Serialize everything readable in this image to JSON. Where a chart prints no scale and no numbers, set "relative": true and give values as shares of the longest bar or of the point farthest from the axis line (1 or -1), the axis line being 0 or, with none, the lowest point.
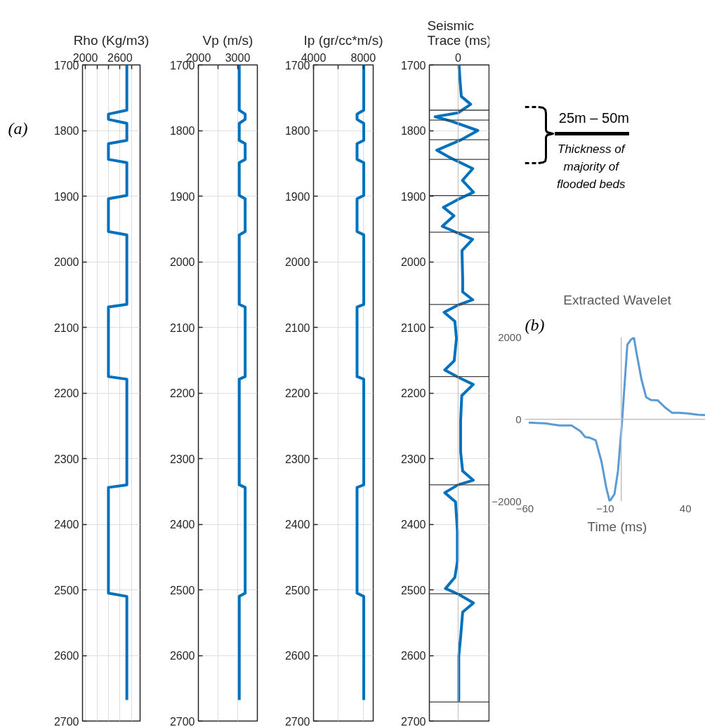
{
  "chart_data": [
    {
      "type": "line",
      "title": "Rho (Kg/m3)",
      "orientation": "horizontal",
      "xlim": [
        1950,
        2950
      ],
      "xticks": [
        2000,
        {
          "value": 2200,
          "label": null
        },
        {
          "value": 2400,
          "label": null
        },
        2600,
        {
          "value": 2800,
          "label": null
        }
      ],
      "ylim": [
        2700,
        1700
      ],
      "yticks": [
        1700,
        1800,
        1900,
        2000,
        2100,
        2200,
        2300,
        2400,
        2500,
        2600,
        2700
      ],
      "grid": true,
      "annotations": [
        "(a)"
      ],
      "series": [
        {
          "color": "#0072bd",
          "x": [
            1700,
            1769,
            1775,
            1783,
            1789,
            1815,
            1820,
            1844,
            1849,
            1899,
            1904,
            1954,
            1959,
            2065,
            2069,
            2175,
            2179,
            2340,
            2344,
            2505,
            2510,
            2668
          ],
          "values": [
            2720,
            2720,
            2400,
            2400,
            2720,
            2720,
            2400,
            2400,
            2720,
            2720,
            2400,
            2400,
            2720,
            2720,
            2400,
            2400,
            2720,
            2720,
            2400,
            2400,
            2720,
            2720
          ]
        }
      ]
    },
    {
      "type": "line",
      "title": "Vp (m/s)",
      "orientation": "horizontal",
      "xlim": [
        2000,
        3500
      ],
      "xticks": [
        2000,
        {
          "value": 2500,
          "label": null
        },
        3000
      ],
      "ylim": [
        2700,
        1700
      ],
      "yticks": [
        1700,
        1800,
        1900,
        2000,
        2100,
        2200,
        2300,
        2400,
        2500,
        2600,
        2700
      ],
      "grid": true,
      "series": [
        {
          "color": "#0072bd",
          "x": [
            1700,
            1769,
            1775,
            1783,
            1789,
            1815,
            1820,
            1844,
            1849,
            1899,
            1904,
            1954,
            1959,
            2065,
            2069,
            2175,
            2179,
            2340,
            2344,
            2505,
            2510,
            2668
          ],
          "values": [
            3040,
            3040,
            3190,
            3190,
            3040,
            3040,
            3190,
            3190,
            3040,
            3040,
            3190,
            3190,
            3040,
            3040,
            3190,
            3190,
            3040,
            3040,
            3190,
            3190,
            3040,
            3040
          ]
        }
      ]
    },
    {
      "type": "line",
      "title": "Ip (gr/cc*m/s)",
      "orientation": "horizontal",
      "xlim": [
        4000,
        8800
      ],
      "xticks": [
        4000,
        {
          "value": 6000,
          "label": null
        },
        8000
      ],
      "ylim": [
        2700,
        1700
      ],
      "yticks": [
        1700,
        1800,
        1900,
        2000,
        2100,
        2200,
        2300,
        2400,
        2500,
        2600,
        2700
      ],
      "grid": true,
      "series": [
        {
          "color": "#0072bd",
          "x": [
            1700,
            1769,
            1775,
            1783,
            1789,
            1815,
            1820,
            1844,
            1849,
            1899,
            1904,
            1954,
            1959,
            2065,
            2069,
            2175,
            2179,
            2340,
            2344,
            2505,
            2510,
            2668
          ],
          "values": [
            8040,
            8040,
            7500,
            7500,
            8040,
            8040,
            7500,
            7500,
            8040,
            8040,
            7500,
            7500,
            8040,
            8040,
            7500,
            7500,
            8040,
            8040,
            7500,
            7500,
            8040,
            8040
          ]
        }
      ]
    },
    {
      "type": "line",
      "title": "Seismic Trace (ms)",
      "orientation": "horizontal",
      "relative": true,
      "ylim": [
        2700,
        1700
      ],
      "yticks": [
        1700,
        1800,
        1900,
        2000,
        2100,
        2200,
        2300,
        2400,
        2500,
        2600,
        2700
      ],
      "grid": "y",
      "annotations": [
        "0",
        "25m – 50m",
        "Thickness of majority of flooded beds"
      ],
      "ref_lines": [
        {
          "axis": "y",
          "value": 1769,
          "color": "#404040"
        },
        {
          "axis": "y",
          "value": 1784,
          "color": "#404040"
        },
        {
          "axis": "y",
          "value": 1814,
          "color": "#404040"
        },
        {
          "axis": "y",
          "value": 1844,
          "color": "#404040"
        },
        {
          "axis": "y",
          "value": 1899,
          "color": "#404040"
        },
        {
          "axis": "y",
          "value": 1955,
          "color": "#404040"
        },
        {
          "axis": "y",
          "value": 2065,
          "color": "#404040"
        },
        {
          "axis": "y",
          "value": 2175,
          "color": "#404040"
        },
        {
          "axis": "y",
          "value": 2340,
          "color": "#404040"
        },
        {
          "axis": "y",
          "value": 2506,
          "color": "#404040"
        },
        {
          "axis": "y",
          "value": 2671,
          "color": "#404040"
        }
      ],
      "series": [
        {
          "color": "#0072bd",
          "x": [
            1700,
            1726,
            1748,
            1760,
            1773,
            1779,
            1785,
            1800,
            1814,
            1830,
            1841,
            1858,
            1876,
            1894,
            1905,
            1917,
            1930,
            1946,
            1966,
            1983,
            2026,
            2046,
            2058,
            2066,
            2077,
            2091,
            2117,
            2151,
            2165,
            2176,
            2187,
            2204,
            2242,
            2290,
            2319,
            2333,
            2340,
            2352,
            2366,
            2410,
            2457,
            2481,
            2498,
            2507,
            2520,
            2534,
            2572,
            2601,
            2670
          ],
          "values": [
            0.04,
            0.09,
            0.14,
            0.55,
            0,
            -1,
            -0.37,
            0.86,
            0.14,
            -0.93,
            -0.37,
            0.64,
            0.19,
            0.67,
            0,
            -0.64,
            -0.18,
            -0.69,
            0.63,
            0.17,
            0.2,
            0.2,
            0.64,
            0,
            -0.61,
            -0.14,
            -0.07,
            -0.17,
            -0.58,
            0,
            0.66,
            0.16,
            0.11,
            0.11,
            0.2,
            0.66,
            0,
            -0.58,
            -0.11,
            -0.03,
            -0.03,
            -0.14,
            -0.55,
            0.03,
            0.67,
            0.2,
            0.11,
            0.03,
            0.03
          ]
        }
      ]
    },
    {
      "type": "line",
      "title": "Extracted Wavelet",
      "xlabel": "Time (ms)",
      "xlim": [
        -60,
        55
      ],
      "xticks": [
        -60,
        -10,
        40
      ],
      "ylim": [
        -2000,
        2000
      ],
      "yticks": [
        -2000,
        0,
        2000
      ],
      "annotations": [
        "(b)"
      ],
      "series": [
        {
          "color": "#5b9bd5",
          "x": [
            -57.6,
            -47.4,
            -38.6,
            -31,
            -25.4,
            -22.5,
            -19.6,
            -15.9,
            -12.3,
            -9.4,
            -7.2,
            -4.2,
            -2,
            0.6,
            2.3,
            3.8,
            6,
            7.9,
            9.6,
            12.6,
            15.5,
            18.4,
            22.8,
            27.2,
            31.6,
            36,
            41.8,
            47.7,
            54.2
          ],
          "values": [
            -80,
            -100,
            -150,
            -150,
            -290,
            -430,
            -450,
            -510,
            -1030,
            -1650,
            -2000,
            -1820,
            -1250,
            0,
            970,
            1820,
            1940,
            1990,
            1600,
            970,
            540,
            470,
            460,
            290,
            160,
            160,
            140,
            110,
            100
          ]
        }
      ]
    }
  ]
}
